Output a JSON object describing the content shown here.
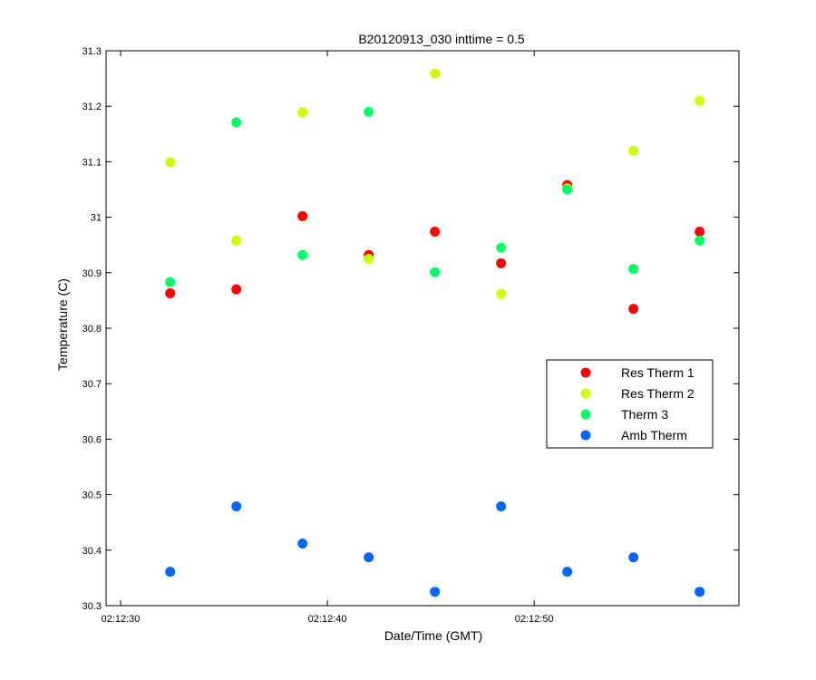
{
  "chart_data": {
    "type": "scatter",
    "title": "B20120913_030 inttime = 0.5",
    "xlabel": "Date/Time (GMT)",
    "ylabel": "Temperature (C)",
    "xlim": [
      -0.7,
      29.9
    ],
    "ylim": [
      30.3,
      31.3
    ],
    "x_ticks": [
      {
        "value": 0,
        "label": "02:12:30"
      },
      {
        "value": 10,
        "label": "02:12:40"
      },
      {
        "value": 20,
        "label": "02:12:50"
      }
    ],
    "y_ticks": [
      {
        "value": 30.3,
        "label": "30.3"
      },
      {
        "value": 30.4,
        "label": "30.4"
      },
      {
        "value": 30.5,
        "label": "30.5"
      },
      {
        "value": 30.6,
        "label": "30.6"
      },
      {
        "value": 30.7,
        "label": "30.7"
      },
      {
        "value": 30.8,
        "label": "30.8"
      },
      {
        "value": 30.9,
        "label": "30.9"
      },
      {
        "value": 31.0,
        "label": "31"
      },
      {
        "value": 31.1,
        "label": "31.1"
      },
      {
        "value": 31.2,
        "label": "31.2"
      },
      {
        "value": 31.3,
        "label": "31.3"
      }
    ],
    "x": [
      2.4,
      5.6,
      8.8,
      12.0,
      15.2,
      18.4,
      21.6,
      24.8,
      28.0
    ],
    "series": [
      {
        "name": "Res Therm 1",
        "color": "#ff0000",
        "values": [
          30.863,
          30.87,
          31.002,
          30.932,
          30.974,
          30.917,
          31.058,
          30.835,
          30.974
        ]
      },
      {
        "name": "Res Therm 2",
        "color": "#ccff00",
        "values": [
          31.099,
          30.958,
          31.189,
          30.925,
          31.259,
          30.862,
          31.052,
          31.12,
          31.21
        ]
      },
      {
        "name": "Therm 3",
        "color": "#00ff66",
        "values": [
          30.883,
          31.171,
          30.932,
          31.19,
          30.901,
          30.945,
          31.05,
          30.907,
          30.958
        ]
      },
      {
        "name": "Amb Therm",
        "color": "#0066ff",
        "values": [
          30.361,
          30.479,
          30.412,
          30.387,
          30.325,
          30.479,
          30.361,
          30.387,
          30.325
        ]
      }
    ],
    "legend": {
      "position": "right-middle"
    },
    "grid": false
  }
}
